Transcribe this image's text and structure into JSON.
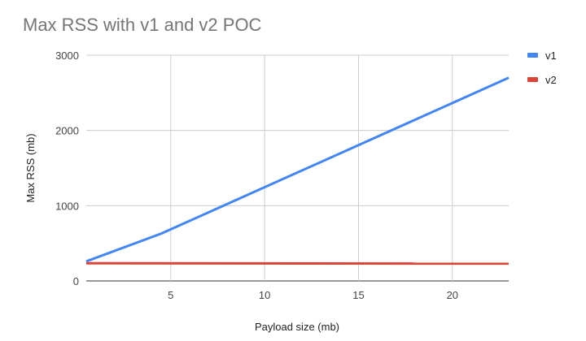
{
  "chart_data": {
    "type": "line",
    "title": "Max RSS with v1 and v2 POC",
    "xlabel": "Payload size (mb)",
    "ylabel": "Max RSS (mb)",
    "xlim": [
      0.5,
      23
    ],
    "ylim": [
      0,
      3000
    ],
    "x_ticks": [
      5,
      10,
      15,
      20
    ],
    "y_ticks": [
      0,
      1000,
      2000,
      3000
    ],
    "grid": true,
    "legend_position": "right",
    "series": [
      {
        "name": "v1",
        "color": "#4285F4",
        "x": [
          0.5,
          4.5,
          23
        ],
        "y": [
          260,
          630,
          2700
        ]
      },
      {
        "name": "v2",
        "color": "#DB4437",
        "x": [
          0.5,
          23
        ],
        "y": [
          235,
          230
        ]
      }
    ]
  }
}
